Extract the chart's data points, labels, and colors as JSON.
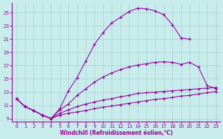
{
  "xlabel": "Windchill (Refroidissement éolien,°C)",
  "bg_color": "#c8ecec",
  "line_color": "#990099",
  "grid_color": "#aacccc",
  "xlim": [
    -0.5,
    23.5
  ],
  "ylim": [
    8.5,
    26.5
  ],
  "xticks": [
    0,
    1,
    2,
    3,
    4,
    5,
    6,
    7,
    8,
    9,
    10,
    11,
    12,
    13,
    14,
    15,
    16,
    17,
    18,
    19,
    20,
    21,
    22,
    23
  ],
  "yticks": [
    9,
    11,
    13,
    15,
    17,
    19,
    21,
    23,
    25
  ],
  "curve1_x": [
    0,
    1,
    2,
    3,
    4,
    5,
    6,
    7,
    8,
    9,
    10,
    11,
    12,
    13,
    14,
    15,
    16,
    17,
    18,
    19,
    20
  ],
  "curve1_y": [
    12.0,
    10.8,
    10.2,
    9.5,
    9.0,
    10.5,
    13.2,
    15.2,
    17.7,
    20.2,
    22.0,
    23.5,
    24.3,
    25.2,
    25.7,
    25.6,
    25.3,
    24.7,
    23.2,
    21.2,
    21.0
  ],
  "curve2_x": [
    0,
    1,
    2,
    3,
    4,
    5,
    6,
    7,
    8,
    9,
    10,
    11,
    12,
    13,
    14,
    15,
    16,
    17,
    18,
    19,
    20,
    21,
    22,
    23
  ],
  "curve2_y": [
    12.0,
    10.8,
    10.2,
    9.5,
    9.0,
    10.3,
    11.2,
    12.5,
    13.5,
    14.5,
    15.3,
    15.9,
    16.4,
    16.8,
    17.1,
    17.3,
    17.5,
    17.6,
    17.5,
    17.2,
    17.5,
    16.8,
    14.0,
    13.5
  ],
  "curve3_x": [
    0,
    1,
    2,
    3,
    4,
    5,
    6,
    7,
    8,
    9,
    10,
    11,
    12,
    13,
    14,
    15,
    16,
    17,
    18,
    19,
    20,
    21,
    22,
    23
  ],
  "curve3_y": [
    12.0,
    10.8,
    10.2,
    9.5,
    9.0,
    9.8,
    10.3,
    10.8,
    11.2,
    11.5,
    11.8,
    12.0,
    12.3,
    12.5,
    12.8,
    12.9,
    13.0,
    13.1,
    13.2,
    13.3,
    13.4,
    13.5,
    13.6,
    13.7
  ],
  "curve4_x": [
    0,
    1,
    2,
    3,
    4,
    5,
    6,
    7,
    8,
    9,
    10,
    11,
    12,
    13,
    14,
    15,
    16,
    17,
    18,
    19,
    20,
    21,
    22,
    23
  ],
  "curve4_y": [
    12.0,
    10.8,
    10.2,
    9.5,
    9.0,
    9.5,
    9.8,
    10.0,
    10.2,
    10.5,
    10.7,
    10.9,
    11.1,
    11.3,
    11.5,
    11.7,
    11.9,
    12.0,
    12.2,
    12.4,
    12.5,
    12.7,
    12.9,
    13.1
  ]
}
